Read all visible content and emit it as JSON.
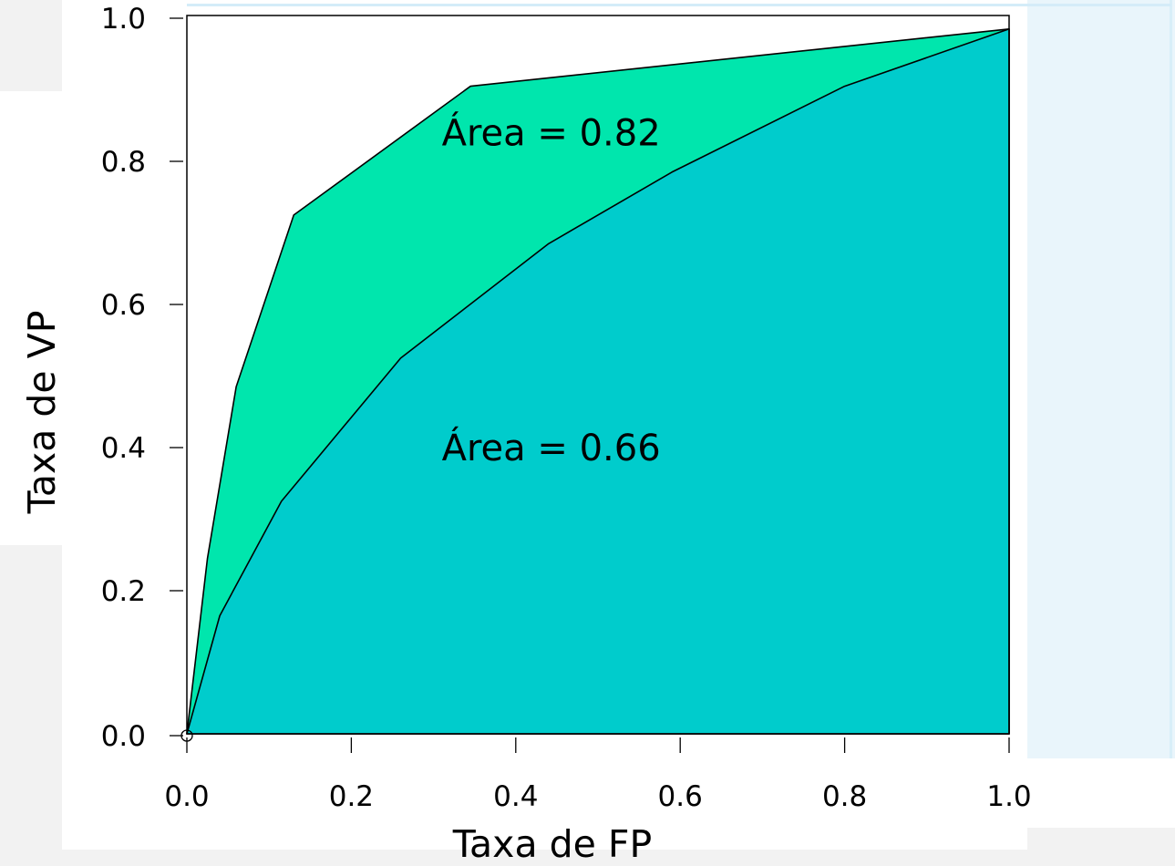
{
  "chart_data": {
    "type": "area",
    "title": "",
    "xlabel": "Taxa de FP",
    "ylabel": "Taxa de VP",
    "xlim": [
      0,
      1
    ],
    "ylim": [
      0,
      1
    ],
    "xticks": [
      "0.0",
      "0.2",
      "0.4",
      "0.6",
      "0.8",
      "1.0"
    ],
    "yticks": [
      "0.0",
      "0.2",
      "0.4",
      "0.6",
      "0.8",
      "1.0"
    ],
    "grid": false,
    "series": [
      {
        "color": "#00e6ad",
        "x": [
          0.0,
          0.025,
          0.06,
          0.13,
          0.345,
          1.0
        ],
        "y": [
          0.0,
          0.245,
          0.485,
          0.725,
          0.905,
          0.985
        ]
      },
      {
        "color": "#00cccc",
        "x": [
          0.0,
          0.04,
          0.115,
          0.26,
          0.44,
          0.59,
          0.8,
          1.0
        ],
        "y": [
          0.0,
          0.165,
          0.325,
          0.525,
          0.685,
          0.785,
          0.905,
          0.985
        ]
      }
    ],
    "annotations": [
      {
        "text": "Área = 0.82",
        "x": 0.31,
        "y": 0.84
      },
      {
        "text": "Área = 0.66",
        "x": 0.31,
        "y": 0.4
      }
    ]
  }
}
